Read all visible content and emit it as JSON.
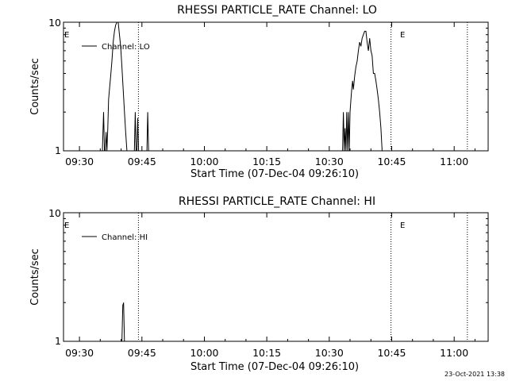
{
  "footer": {
    "timestamp": "23-Oct-2021 13:38"
  },
  "chart_data": [
    {
      "type": "line",
      "title": "RHESSI PARTICLE_RATE Channel: LO",
      "xlabel": "Start Time (07-Dec-04 09:26:10)",
      "ylabel": "Counts/sec",
      "y_scale": "log",
      "ylim": [
        1,
        10
      ],
      "yticks": [
        "1",
        "10"
      ],
      "xlim": [
        "09:26:10",
        "11:08:10"
      ],
      "xticks": [
        "09:30",
        "09:45",
        "10:00",
        "10:15",
        "10:30",
        "10:45",
        "11:00"
      ],
      "legend": {
        "placement": "top-left",
        "entries": [
          "Channel: LO"
        ]
      },
      "grid": false,
      "series": [
        {
          "name": "Channel: LO",
          "color": "#000000",
          "x": [
            "09:35:30",
            "09:35:48",
            "09:36:00",
            "09:36:12",
            "09:36:24",
            "09:36:36",
            "09:36:48",
            "09:37:00",
            "09:37:12",
            "09:37:30",
            "09:37:48",
            "09:38:06",
            "09:38:24",
            "09:38:42",
            "09:39:00",
            "09:39:18",
            "09:39:36",
            "09:39:54",
            "09:40:12",
            "09:40:30",
            "09:40:48",
            "09:41:06",
            "09:41:24",
            "09:41:42",
            "09:42:00",
            "09:42:18",
            "09:42:36",
            "09:42:54",
            "09:43:12",
            "09:43:24",
            "09:43:36",
            "09:43:48",
            "09:44:00",
            "09:44:12",
            "09:44:24",
            "09:44:36",
            "09:44:48",
            "09:45:00",
            "09:45:12",
            "09:45:24",
            "09:45:36",
            "09:45:48",
            "09:46:00",
            "09:46:12",
            "09:46:24",
            "09:46:36",
            "09:46:48",
            "09:47:00",
            "09:47:12",
            "09:47:24",
            "09:47:36",
            "10:33:00",
            "10:33:12",
            "10:33:24",
            "10:33:36",
            "10:33:48",
            "10:34:00",
            "10:34:12",
            "10:34:24",
            "10:34:36",
            "10:34:48",
            "10:35:00",
            "10:35:12",
            "10:35:24",
            "10:35:36",
            "10:35:48",
            "10:36:06",
            "10:36:24",
            "10:36:42",
            "10:37:00",
            "10:37:18",
            "10:37:36",
            "10:37:54",
            "10:38:12",
            "10:38:30",
            "10:38:48",
            "10:39:06",
            "10:39:24",
            "10:39:42",
            "10:40:00",
            "10:40:18",
            "10:40:36",
            "10:40:54",
            "10:41:12",
            "10:41:30",
            "10:41:48",
            "10:42:06",
            "10:42:24",
            "10:42:42"
          ],
          "values": [
            1,
            2,
            1,
            1,
            1.4,
            1,
            1.5,
            2.5,
            3,
            3.8,
            5,
            7,
            8.5,
            9.5,
            10,
            10,
            8,
            6.5,
            4.5,
            3,
            2,
            1.4,
            1,
            1,
            1,
            1,
            1,
            1,
            1,
            2,
            1,
            1,
            1.8,
            1,
            1,
            1,
            1,
            1,
            1,
            1,
            1,
            1,
            1,
            1,
            2,
            1,
            1,
            1,
            1,
            1,
            1,
            1,
            1,
            2,
            1,
            1.5,
            1,
            2,
            1,
            2,
            1,
            2,
            2.5,
            3,
            3.5,
            3,
            3.8,
            4.5,
            5,
            6,
            7,
            6.5,
            7.5,
            8,
            8.5,
            8.5,
            7,
            6,
            7.5,
            6,
            5.5,
            4,
            4,
            3.5,
            3,
            2.5,
            2,
            1.5,
            1
          ]
        }
      ],
      "annotations": [
        {
          "text": "E",
          "x": "09:26:10"
        },
        {
          "text": "E",
          "x": "10:44:40"
        }
      ],
      "markers": [
        "09:44:10",
        "10:44:50",
        "11:03:10"
      ]
    },
    {
      "type": "line",
      "title": "RHESSI PARTICLE_RATE Channel: HI",
      "xlabel": "Start Time (07-Dec-04 09:26:10)",
      "ylabel": "Counts/sec",
      "y_scale": "log",
      "ylim": [
        1,
        10
      ],
      "yticks": [
        "1",
        "10"
      ],
      "xlim": [
        "09:26:10",
        "11:08:10"
      ],
      "xticks": [
        "09:30",
        "09:45",
        "10:00",
        "10:15",
        "10:30",
        "10:45",
        "11:00"
      ],
      "legend": {
        "placement": "top-left",
        "entries": [
          "Channel: HI"
        ]
      },
      "grid": false,
      "series": [
        {
          "name": "Channel: HI",
          "color": "#000000",
          "x": [
            "09:40:12",
            "09:40:24",
            "09:40:36",
            "09:40:48"
          ],
          "values": [
            1,
            1.9,
            2,
            1
          ]
        }
      ],
      "annotations": [
        {
          "text": "E",
          "x": "09:26:10"
        },
        {
          "text": "E",
          "x": "10:44:40"
        }
      ],
      "markers": [
        "09:44:10",
        "10:44:50",
        "11:03:10"
      ]
    }
  ]
}
